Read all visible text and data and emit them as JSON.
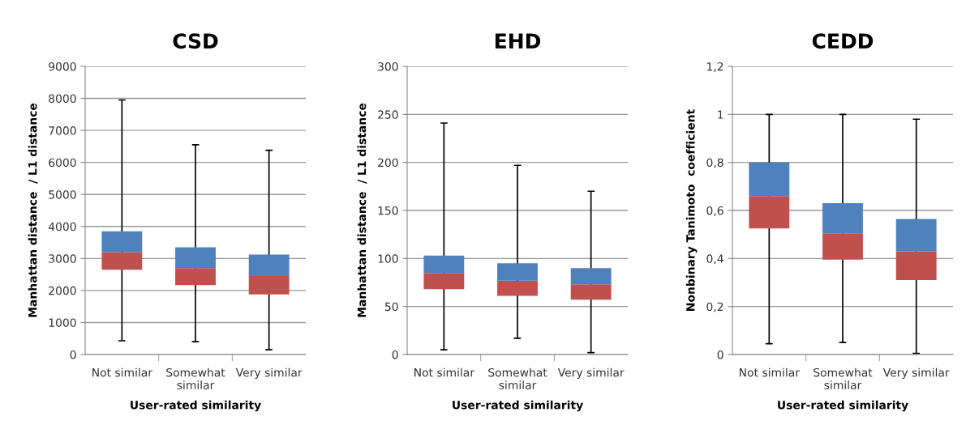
{
  "chart_data": [
    {
      "type": "box",
      "title": "CSD",
      "xlabel": "User-rated similarity",
      "ylabel": "Manhattan distance  / L1 distance",
      "categories": [
        "Not similar",
        "Somewhat similar",
        "Very similar"
      ],
      "colors": [
        [
          "#c0504d",
          "#4f81bd"
        ],
        [
          "#c0504d",
          "#4f81bd"
        ],
        [
          "#c0504d",
          "#4f81bd"
        ]
      ],
      "grid": "y",
      "ylim": [
        0,
        9000
      ],
      "yticks": [
        0,
        1000,
        2000,
        3000,
        4000,
        5000,
        6000,
        7000,
        8000,
        9000
      ],
      "boxes": [
        {
          "low": 430,
          "q1": 2650,
          "median": 3200,
          "q3": 3850,
          "high": 7950
        },
        {
          "low": 400,
          "q1": 2170,
          "median": 2700,
          "q3": 3350,
          "high": 6550
        },
        {
          "low": 150,
          "q1": 1880,
          "median": 2450,
          "q3": 3120,
          "high": 6380
        }
      ]
    },
    {
      "type": "box",
      "title": "EHD",
      "xlabel": "User-rated similarity",
      "ylabel": "Manhattan distance  / L1 distance",
      "categories": [
        "Not similar",
        "Somewhat similar",
        "Very similar"
      ],
      "colors": [
        [
          "#c0504d",
          "#4f81bd"
        ],
        [
          "#c0504d",
          "#4f81bd"
        ],
        [
          "#c0504d",
          "#4f81bd"
        ]
      ],
      "grid": "y",
      "ylim": [
        0,
        300
      ],
      "yticks": [
        0,
        50,
        100,
        150,
        200,
        250,
        300
      ],
      "boxes": [
        {
          "low": 5,
          "q1": 68,
          "median": 85,
          "q3": 103,
          "high": 241
        },
        {
          "low": 17,
          "q1": 61,
          "median": 77,
          "q3": 95,
          "high": 197
        },
        {
          "low": 2,
          "q1": 57,
          "median": 73,
          "q3": 90,
          "high": 170
        }
      ]
    },
    {
      "type": "box",
      "title": "CEDD",
      "xlabel": "User-rated similarity",
      "ylabel": "Nonbinary Tanimoto  coefficient",
      "categories": [
        "Not similar",
        "Somewhat similar",
        "Very similar"
      ],
      "colors": [
        [
          "#c0504d",
          "#4f81bd"
        ],
        [
          "#c0504d",
          "#4f81bd"
        ],
        [
          "#c0504d",
          "#4f81bd"
        ]
      ],
      "grid": "y",
      "ylim": [
        0,
        1.2
      ],
      "yticks": [
        0,
        {
          "value": 0.2,
          "label": "0,2"
        },
        {
          "value": 0.4,
          "label": "0,4"
        },
        {
          "value": 0.6,
          "label": "0,6"
        },
        {
          "value": 0.8,
          "label": "0,8"
        },
        1,
        {
          "value": 1.2,
          "label": "1,2"
        }
      ],
      "boxes": [
        {
          "low": 0.045,
          "q1": 0.525,
          "median": 0.66,
          "q3": 0.8,
          "high": 1.0
        },
        {
          "low": 0.05,
          "q1": 0.395,
          "median": 0.505,
          "q3": 0.63,
          "high": 1.0
        },
        {
          "low": 0.005,
          "q1": 0.31,
          "median": 0.43,
          "q3": 0.565,
          "high": 0.98
        }
      ]
    }
  ]
}
